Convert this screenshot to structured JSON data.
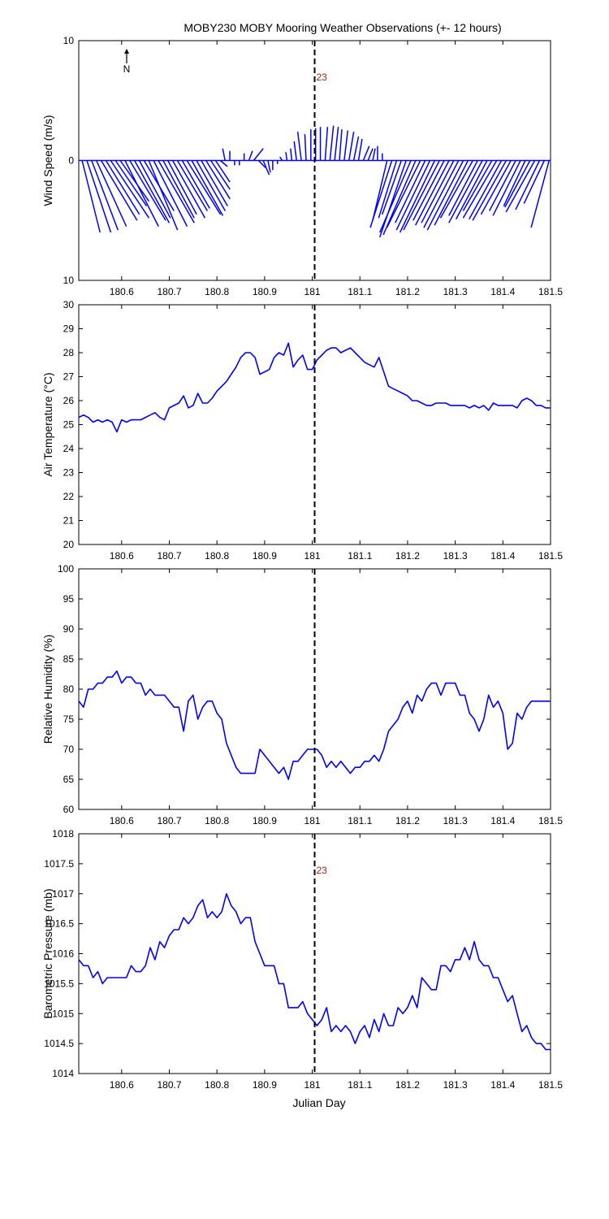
{
  "title": "MOBY230 MOBY Mooring Weather Observations (+- 12 hours)",
  "xlabel": "Julian Day",
  "x_ticks": [
    180.6,
    180.7,
    180.8,
    180.9,
    181,
    181.1,
    181.2,
    181.3,
    181.4,
    181.5
  ],
  "x_tick_labels": [
    "180.6",
    "180.7",
    "180.8",
    "180.9",
    "181",
    "181.1",
    "181.2",
    "181.3",
    "181.4",
    "181.5"
  ],
  "colors": {
    "series": "#0000ff",
    "marker": "#000000",
    "annotation": "#aa2222"
  },
  "chart_data": [
    {
      "type": "wind-vector",
      "ylabel": "Wind Speed (m/s)",
      "xlim": [
        180.51,
        181.5
      ],
      "ylim": [
        -10,
        10
      ],
      "y_tick_labels": [
        "10",
        "0",
        "10"
      ],
      "north_label": "N",
      "marker_x": 181.005,
      "marker_label": "23",
      "series": {
        "x": [
          180.517,
          180.527,
          180.537,
          180.547,
          180.557,
          180.567,
          180.577,
          180.587,
          180.597,
          180.607,
          180.617,
          180.627,
          180.637,
          180.647,
          180.657,
          180.667,
          180.677,
          180.687,
          180.697,
          180.707,
          180.717,
          180.727,
          180.737,
          180.747,
          180.757,
          180.767,
          180.777,
          180.787,
          180.797,
          180.807,
          180.817,
          180.827,
          180.837,
          180.847,
          180.857,
          180.867,
          180.877,
          180.887,
          180.897,
          180.907,
          180.917,
          180.927,
          180.937,
          180.947,
          180.957,
          180.967,
          180.977,
          180.987,
          180.997,
          181.007,
          181.017,
          181.027,
          181.037,
          181.047,
          181.057,
          181.067,
          181.077,
          181.087,
          181.097,
          181.107,
          181.117,
          181.127,
          181.137,
          181.147,
          181.157,
          181.167,
          181.177,
          181.187,
          181.197,
          181.207,
          181.217,
          181.227,
          181.237,
          181.247,
          181.257,
          181.267,
          181.277,
          181.287,
          181.297,
          181.307,
          181.317,
          181.327,
          181.337,
          181.347,
          181.357,
          181.367,
          181.377,
          181.387,
          181.397,
          181.407,
          181.417,
          181.427,
          181.437,
          181.447,
          181.457,
          181.467,
          181.477,
          181.487,
          181.497
        ],
        "u": [
          1.5,
          2.0,
          2.2,
          2.5,
          3.0,
          2.8,
          3.2,
          2.6,
          2.4,
          2.8,
          3.0,
          2.9,
          2.6,
          2.5,
          2.4,
          2.8,
          3.0,
          2.6,
          2.4,
          2.7,
          2.5,
          2.3,
          2.8,
          2.6,
          2.4,
          2.2,
          2.0,
          1.6,
          1.2,
          0.6,
          -0.2,
          0.0,
          0.0,
          0.0,
          0.0,
          0.3,
          0.8,
          0.6,
          0.5,
          0.2,
          0.0,
          0.0,
          -0.2,
          -0.1,
          -0.1,
          -0.2,
          -0.3,
          -0.1,
          0.0,
          0.0,
          0.0,
          0.2,
          0.3,
          0.3,
          0.2,
          0.3,
          0.4,
          0.4,
          0.3,
          0.5,
          0.4,
          0.2,
          0.0,
          0.0,
          -1.2,
          -1.8,
          -1.5,
          -1.6,
          -2.2,
          -2.6,
          -2.7,
          -2.8,
          -2.5,
          -2.8,
          -2.9,
          -3.0,
          -2.6,
          -2.8,
          -2.7,
          -2.9,
          -3.0,
          -2.8,
          -2.7,
          -2.4,
          -2.8,
          -2.6,
          -2.4,
          -2.8,
          -2.7,
          -2.8,
          -2.5,
          -2.2,
          -2.3,
          -1.8,
          -2.1,
          -2.4,
          -2.0,
          -1.7,
          -1.5
        ],
        "v": [
          -6.0,
          -6.0,
          -5.8,
          -5.5,
          -5.0,
          -4.5,
          -4.8,
          -3.8,
          -3.4,
          -5.5,
          -5.0,
          -5.2,
          -4.8,
          -4.2,
          -5.8,
          -5.5,
          -5.2,
          -4.8,
          -4.5,
          -4.8,
          -4.2,
          -4.0,
          -4.5,
          -4.6,
          -4.2,
          -3.8,
          -3.2,
          -2.4,
          -1.8,
          -0.5,
          1.0,
          0.8,
          -0.4,
          -0.4,
          0.6,
          0.8,
          1.0,
          -0.6,
          -1.2,
          -1.0,
          -0.8,
          -0.3,
          0.3,
          0.7,
          1.0,
          1.6,
          2.4,
          2.2,
          2.6,
          2.7,
          2.8,
          2.8,
          2.9,
          2.8,
          2.6,
          2.5,
          2.4,
          2.0,
          1.8,
          1.2,
          1.0,
          1.0,
          1.2,
          0.6,
          -5.0,
          -5.6,
          -4.8,
          -4.5,
          -6.4,
          -6.0,
          -6.2,
          -5.6,
          -5.2,
          -5.8,
          -6.0,
          -5.8,
          -5.0,
          -5.4,
          -5.2,
          -5.6,
          -5.8,
          -5.4,
          -4.8,
          -4.6,
          -5.2,
          -4.9,
          -4.2,
          -4.8,
          -4.9,
          -5.0,
          -4.5,
          -4.2,
          -4.6,
          -3.8,
          -3.9,
          -4.3,
          -4.1,
          -3.6,
          -5.6
        ]
      }
    },
    {
      "type": "line",
      "ylabel": "Air Temperature (°C)",
      "xlim": [
        180.51,
        181.5
      ],
      "ylim": [
        20,
        30
      ],
      "y_tick_labels": [
        "20",
        "21",
        "22",
        "23",
        "24",
        "25",
        "26",
        "27",
        "28",
        "29",
        "30"
      ],
      "marker_x": 181.005,
      "series": [
        {
          "x": [
            180.51,
            180.52,
            180.53,
            180.54,
            180.55,
            180.56,
            180.57,
            180.58,
            180.59,
            180.6,
            180.61,
            180.62,
            180.63,
            180.64,
            180.65,
            180.66,
            180.67,
            180.68,
            180.69,
            180.7,
            180.71,
            180.72,
            180.73,
            180.74,
            180.75,
            180.76,
            180.77,
            180.78,
            180.79,
            180.8,
            180.81,
            180.82,
            180.83,
            180.84,
            180.85,
            180.86,
            180.87,
            180.88,
            180.89,
            180.9,
            180.91,
            180.92,
            180.93,
            180.94,
            180.95,
            180.96,
            180.97,
            180.98,
            180.99,
            181,
            181.01,
            181.02,
            181.03,
            181.04,
            181.05,
            181.06,
            181.07,
            181.08,
            181.09,
            181.1,
            181.11,
            181.12,
            181.13,
            181.14,
            181.15,
            181.16,
            181.17,
            181.18,
            181.19,
            181.2,
            181.21,
            181.22,
            181.23,
            181.24,
            181.25,
            181.26,
            181.27,
            181.28,
            181.29,
            181.3,
            181.31,
            181.32,
            181.33,
            181.34,
            181.35,
            181.36,
            181.37,
            181.38,
            181.39,
            181.4,
            181.41,
            181.42,
            181.43,
            181.44,
            181.45,
            181.46,
            181.47,
            181.48,
            181.49,
            181.5
          ],
          "y": [
            25.3,
            25.4,
            25.3,
            25.1,
            25.2,
            25.1,
            25.2,
            25.1,
            24.7,
            25.2,
            25.1,
            25.2,
            25.2,
            25.2,
            25.3,
            25.4,
            25.5,
            25.3,
            25.2,
            25.7,
            25.8,
            25.9,
            26.2,
            25.7,
            25.8,
            26.3,
            25.9,
            25.9,
            26.1,
            26.4,
            26.6,
            26.8,
            27.1,
            27.4,
            27.8,
            28.0,
            28.0,
            27.8,
            27.1,
            27.2,
            27.3,
            27.8,
            28.0,
            27.9,
            28.4,
            27.4,
            27.7,
            27.9,
            27.3,
            27.3,
            27.7,
            27.9,
            28.1,
            28.2,
            28.2,
            28.0,
            28.1,
            28.2,
            28.0,
            27.8,
            27.6,
            27.5,
            27.4,
            27.8,
            27.2,
            26.6,
            26.5,
            26.4,
            26.3,
            26.2,
            26.0,
            26.0,
            25.9,
            25.8,
            25.8,
            25.9,
            25.9,
            25.9,
            25.8,
            25.8,
            25.8,
            25.8,
            25.7,
            25.8,
            25.7,
            25.8,
            25.6,
            25.9,
            25.8,
            25.8,
            25.8,
            25.8,
            25.7,
            26.0,
            26.1,
            26.0,
            25.8,
            25.8,
            25.7,
            25.7
          ]
        }
      ]
    },
    {
      "type": "line",
      "ylabel": "Relative Humidity (%)",
      "xlim": [
        180.51,
        181.5
      ],
      "ylim": [
        60,
        100
      ],
      "y_tick_labels": [
        "60",
        "65",
        "70",
        "75",
        "80",
        "85",
        "90",
        "95",
        "100"
      ],
      "marker_x": 181.005,
      "series": [
        {
          "x": [
            180.51,
            180.52,
            180.53,
            180.54,
            180.55,
            180.56,
            180.57,
            180.58,
            180.59,
            180.6,
            180.61,
            180.62,
            180.63,
            180.64,
            180.65,
            180.66,
            180.67,
            180.68,
            180.69,
            180.7,
            180.71,
            180.72,
            180.73,
            180.74,
            180.75,
            180.76,
            180.77,
            180.78,
            180.79,
            180.8,
            180.81,
            180.82,
            180.83,
            180.84,
            180.85,
            180.86,
            180.87,
            180.88,
            180.89,
            180.9,
            180.91,
            180.92,
            180.93,
            180.94,
            180.95,
            180.96,
            180.97,
            180.98,
            180.99,
            181,
            181.01,
            181.02,
            181.03,
            181.04,
            181.05,
            181.06,
            181.07,
            181.08,
            181.09,
            181.1,
            181.11,
            181.12,
            181.13,
            181.14,
            181.15,
            181.16,
            181.17,
            181.18,
            181.19,
            181.2,
            181.21,
            181.22,
            181.23,
            181.24,
            181.25,
            181.26,
            181.27,
            181.28,
            181.29,
            181.3,
            181.31,
            181.32,
            181.33,
            181.34,
            181.35,
            181.36,
            181.37,
            181.38,
            181.39,
            181.4,
            181.41,
            181.42,
            181.43,
            181.44,
            181.45,
            181.46,
            181.47,
            181.48,
            181.49,
            181.5
          ],
          "y": [
            78,
            77,
            80,
            80,
            81,
            81,
            82,
            82,
            83,
            81,
            82,
            82,
            81,
            81,
            79,
            80,
            79,
            79,
            79,
            78,
            77,
            77,
            73,
            78,
            79,
            75,
            77,
            78,
            78,
            76,
            75,
            71,
            69,
            67,
            66,
            66,
            66,
            66,
            70,
            69,
            68,
            67,
            66,
            67,
            65,
            68,
            68,
            69,
            70,
            70,
            70,
            69,
            67,
            68,
            67,
            68,
            67,
            66,
            67,
            67,
            68,
            68,
            69,
            68,
            70,
            73,
            74,
            75,
            77,
            78,
            76,
            79,
            78,
            80,
            81,
            81,
            79,
            81,
            81,
            81,
            79,
            79,
            76,
            75,
            73,
            75,
            79,
            77,
            78,
            76,
            70,
            71,
            76,
            75,
            77,
            78,
            78,
            78,
            78,
            78
          ]
        }
      ]
    },
    {
      "type": "line",
      "ylabel": "Barometric Pressure (mb)",
      "xlim": [
        180.51,
        181.5
      ],
      "ylim": [
        1014,
        1018
      ],
      "y_tick_labels": [
        "1014",
        "1014.5",
        "1015",
        "1015.5",
        "1016",
        "1016.5",
        "1017",
        "1017.5",
        "1018"
      ],
      "marker_x": 181.005,
      "marker_label": "23",
      "series": [
        {
          "x": [
            180.51,
            180.52,
            180.53,
            180.54,
            180.55,
            180.56,
            180.57,
            180.58,
            180.59,
            180.6,
            180.61,
            180.62,
            180.63,
            180.64,
            180.65,
            180.66,
            180.67,
            180.68,
            180.69,
            180.7,
            180.71,
            180.72,
            180.73,
            180.74,
            180.75,
            180.76,
            180.77,
            180.78,
            180.79,
            180.8,
            180.81,
            180.82,
            180.83,
            180.84,
            180.85,
            180.86,
            180.87,
            180.88,
            180.89,
            180.9,
            180.91,
            180.92,
            180.93,
            180.94,
            180.95,
            180.96,
            180.97,
            180.98,
            180.99,
            181,
            181.01,
            181.02,
            181.03,
            181.04,
            181.05,
            181.06,
            181.07,
            181.08,
            181.09,
            181.1,
            181.11,
            181.12,
            181.13,
            181.14,
            181.15,
            181.16,
            181.17,
            181.18,
            181.19,
            181.2,
            181.21,
            181.22,
            181.23,
            181.24,
            181.25,
            181.26,
            181.27,
            181.28,
            181.29,
            181.3,
            181.31,
            181.32,
            181.33,
            181.34,
            181.35,
            181.36,
            181.37,
            181.38,
            181.39,
            181.4,
            181.41,
            181.42,
            181.43,
            181.44,
            181.45,
            181.46,
            181.47,
            181.48,
            181.49,
            181.5
          ],
          "y": [
            1015.9,
            1015.8,
            1015.8,
            1015.6,
            1015.7,
            1015.5,
            1015.6,
            1015.6,
            1015.6,
            1015.6,
            1015.6,
            1015.8,
            1015.7,
            1015.7,
            1015.8,
            1016.1,
            1015.9,
            1016.2,
            1016.1,
            1016.3,
            1016.4,
            1016.4,
            1016.6,
            1016.5,
            1016.6,
            1016.8,
            1016.9,
            1016.6,
            1016.7,
            1016.6,
            1016.7,
            1017.0,
            1016.8,
            1016.7,
            1016.5,
            1016.6,
            1016.6,
            1016.2,
            1016.0,
            1015.8,
            1015.8,
            1015.8,
            1015.5,
            1015.5,
            1015.1,
            1015.1,
            1015.1,
            1015.2,
            1015.0,
            1014.9,
            1014.8,
            1014.9,
            1015.1,
            1014.7,
            1014.8,
            1014.7,
            1014.8,
            1014.7,
            1014.5,
            1014.7,
            1014.8,
            1014.6,
            1014.9,
            1014.7,
            1015.0,
            1014.8,
            1014.8,
            1015.1,
            1015.0,
            1015.1,
            1015.3,
            1015.1,
            1015.6,
            1015.5,
            1015.4,
            1015.4,
            1015.8,
            1015.8,
            1015.7,
            1015.9,
            1015.9,
            1016.1,
            1015.9,
            1016.2,
            1015.9,
            1015.8,
            1015.8,
            1015.6,
            1015.6,
            1015.4,
            1015.2,
            1015.3,
            1015.0,
            1014.7,
            1014.8,
            1014.6,
            1014.5,
            1014.5,
            1014.4,
            1014.4
          ]
        }
      ]
    }
  ]
}
